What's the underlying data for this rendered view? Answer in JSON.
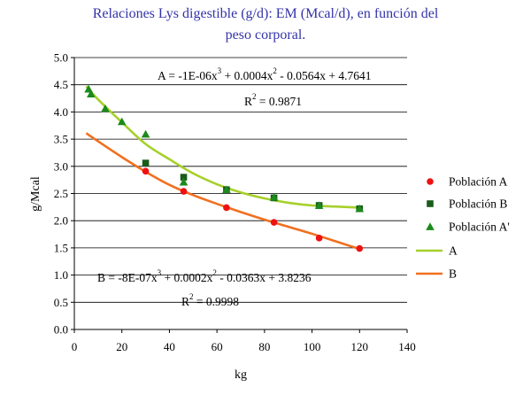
{
  "title_line1": "Relaciones Lys digestible (g/d): EM (Mcal/d), en función del",
  "title_line2": "peso corporal.",
  "chart_data": {
    "type": "scatter",
    "xlabel": "kg",
    "ylabel": "g/Mcal",
    "xlim": [
      0,
      140
    ],
    "ylim": [
      0.0,
      5.0
    ],
    "x_ticks": [
      "0",
      "20",
      "40",
      "60",
      "80",
      "100",
      "120",
      "140"
    ],
    "y_ticks": [
      "0.0",
      "0.5",
      "1.0",
      "1.5",
      "2.0",
      "2.5",
      "3.0",
      "3.5",
      "4.0",
      "4.5",
      "5.0"
    ],
    "grid": "horizontal",
    "legend_position": "right",
    "series": [
      {
        "name": "Población A",
        "kind": "points",
        "marker": "circle",
        "color": "#ee1111",
        "x": [
          30,
          46,
          64,
          84,
          103,
          120
        ],
        "y": [
          2.91,
          2.54,
          2.24,
          1.97,
          1.68,
          1.49
        ]
      },
      {
        "name": "Población B",
        "kind": "points",
        "marker": "square",
        "color": "#1a5c1a",
        "x": [
          30,
          46,
          64,
          84,
          103,
          120
        ],
        "y": [
          3.06,
          2.8,
          2.57,
          2.42,
          2.28,
          2.22
        ]
      },
      {
        "name": "Población A'",
        "kind": "points",
        "marker": "triangle",
        "color": "#1c8a1c",
        "x": [
          6,
          7,
          13,
          20,
          30,
          46,
          64,
          84,
          103,
          120
        ],
        "y": [
          4.42,
          4.33,
          4.06,
          3.82,
          3.59,
          2.71,
          2.57,
          2.43,
          2.28,
          2.22
        ]
      },
      {
        "name": "A",
        "kind": "line",
        "color": "#a6d02a",
        "x": [
          5,
          10,
          20,
          30,
          40,
          50,
          60,
          70,
          80,
          90,
          100,
          110,
          120
        ],
        "y": [
          4.47,
          4.23,
          3.81,
          3.41,
          3.13,
          2.87,
          2.67,
          2.52,
          2.41,
          2.33,
          2.28,
          2.26,
          2.24
        ]
      },
      {
        "name": "B",
        "kind": "line",
        "color": "#f07020",
        "x": [
          5,
          10,
          20,
          30,
          40,
          50,
          60,
          70,
          80,
          90,
          100,
          110,
          120
        ],
        "y": [
          3.61,
          3.46,
          3.17,
          2.9,
          2.66,
          2.47,
          2.31,
          2.16,
          2.02,
          1.89,
          1.76,
          1.62,
          1.48
        ]
      }
    ],
    "annotations": {
      "eqA": {
        "parts": [
          "A = -1E-06x",
          "3",
          " + 0.0004x",
          "2",
          " - 0.0564x + 4.7641"
        ]
      },
      "r2A": {
        "parts": [
          "R",
          "2",
          " = 0.9871"
        ]
      },
      "eqB": {
        "parts": [
          "B = -8E-07x",
          "3",
          " + 0.0002x",
          "2",
          " - 0.0363x + 3.8236"
        ]
      },
      "r2B": {
        "parts": [
          "R",
          "2",
          " = 0.9998"
        ]
      }
    }
  }
}
